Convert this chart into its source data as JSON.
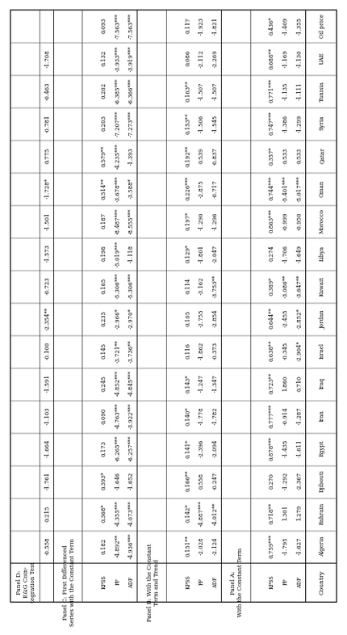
{
  "countries": [
    "Algeria",
    "Bahrain",
    "Djibouti",
    "Egypt",
    "Iran",
    "Iraq",
    "Israel",
    "Jordan",
    "Kuwait",
    "Libya",
    "Morocco",
    "Oman",
    "Qatar",
    "Syria",
    "Tunisia",
    "UAE",
    "Oil price"
  ],
  "panel_a_label": "Panel A:\nWith the Constant Term",
  "panel_b_label": "Panel B: With the Constant\nTerm and Trend",
  "panel_c_label": "Panel C: First Differenced\nSeries with the Constant Term",
  "panel_d_label": "Panel D:\nE&G Coin-\ntegration Test",
  "subcols_abc": [
    "ADF",
    "PP",
    "KPSS"
  ],
  "panel_a": [
    [
      "-1.627",
      "-1.795",
      "0.759***"
    ],
    [
      "1.279",
      "1.301",
      "0.718**"
    ],
    [
      "-2.367",
      "-1.292",
      "0.270"
    ],
    [
      "-1.611",
      "-1.435",
      "0.878***"
    ],
    [
      "-1.287",
      "-0.914",
      "0.777***"
    ],
    [
      "0.710",
      "1.860",
      "0.723**"
    ],
    [
      "-2.904*",
      "-0.345",
      "0.638**"
    ],
    [
      "-2.852*",
      "-2.455",
      "0.644**"
    ],
    [
      "-3.647**",
      "-3.086**",
      "0.389*"
    ],
    [
      "-1.649",
      "-1.706",
      "0.274"
    ],
    [
      "-0.950",
      "-0.999",
      "0.863***"
    ],
    [
      "-5.017***",
      "-5.401***",
      "0.744***"
    ],
    [
      "0.533",
      "0.533",
      "0.357*"
    ],
    [
      "-1.299",
      "-1.386",
      "0.747***"
    ],
    [
      "-1.111",
      "-1.135",
      "0.771***"
    ],
    [
      "-1.130",
      "-1.169",
      "0.688**"
    ],
    [
      "-1.355",
      "-1.409",
      "0.436*"
    ]
  ],
  "panel_b": [
    [
      "-2.124",
      "-2.028",
      "0.151**"
    ],
    [
      "-4.012**",
      "-4.887***",
      "0.142*"
    ],
    [
      "-0.247",
      "0.558",
      "0.166**"
    ],
    [
      "-2.094",
      "-2.396",
      "0.141*"
    ],
    [
      "-1.782",
      "-1.778",
      "0.140*"
    ],
    [
      "-1.347",
      "-1.247",
      "0.143*"
    ],
    [
      "-0.373",
      "-1.862",
      "0.116"
    ],
    [
      "-2.854",
      "-2.755",
      "0.105"
    ],
    [
      "-3.753**",
      "-3.162",
      "0.114"
    ],
    [
      "-2.047",
      "-1.801",
      "0.129*"
    ],
    [
      "-1.296",
      "-1.290",
      "0.197*"
    ],
    [
      "-0.717",
      "-2.875",
      "0.226***"
    ],
    [
      "-0.837",
      "0.539",
      "0.192**"
    ],
    [
      "-1.545",
      "-1.506",
      "0.153**"
    ],
    [
      "-1.507",
      "-1.507",
      "0.163**"
    ],
    [
      "-2.269",
      "-2.112",
      "0.086"
    ],
    [
      "-1.821",
      "-1.923",
      "0.117"
    ]
  ],
  "panel_c": [
    [
      "-4.936***",
      "-4.892**",
      "0.182"
    ],
    [
      "-4.073***",
      "-4.355***",
      "0.368*"
    ],
    [
      "-1.652",
      "-1.646",
      "0.393*"
    ],
    [
      "-6.257***",
      "-6.265***",
      "0.173"
    ],
    [
      "-3.922***",
      "-4.763***",
      "0.090"
    ],
    [
      "-4.845***",
      "-4.852***",
      "0.245"
    ],
    [
      "-3.736**",
      "-3.721**",
      "0.145"
    ],
    [
      "-2.970*",
      "-2.966*",
      "0.235"
    ],
    [
      "-5.306***",
      "-5.306***",
      "0.165"
    ],
    [
      "-1.118",
      "-5.019***",
      "0.198"
    ],
    [
      "-8.555***",
      "-8.487***",
      "0.187"
    ],
    [
      "-3.588*",
      "-3.678***",
      "0.514**"
    ],
    [
      "-1.393",
      "-4.235***",
      "0.579**"
    ],
    [
      "-7.273***",
      "-7.207***",
      "0.203"
    ],
    [
      "-6.366***",
      "-6.385***",
      "0.202"
    ],
    [
      "-3.919***",
      "-3.933***",
      "0.132"
    ],
    [
      "-7.563***",
      "-7.563***",
      "0.093"
    ]
  ],
  "panel_d": [
    "-0.558",
    "0.215",
    "-1.761",
    "-1.664",
    "-1.103",
    "-1.591",
    "-0.100",
    "-2.354**",
    "-0.723",
    "-1.573",
    "-1.501",
    "-1.728*",
    "0.775",
    "-0.781",
    "-0.463",
    "-1.708",
    ""
  ],
  "bg_color": "#ffffff",
  "line_color": "#000000"
}
